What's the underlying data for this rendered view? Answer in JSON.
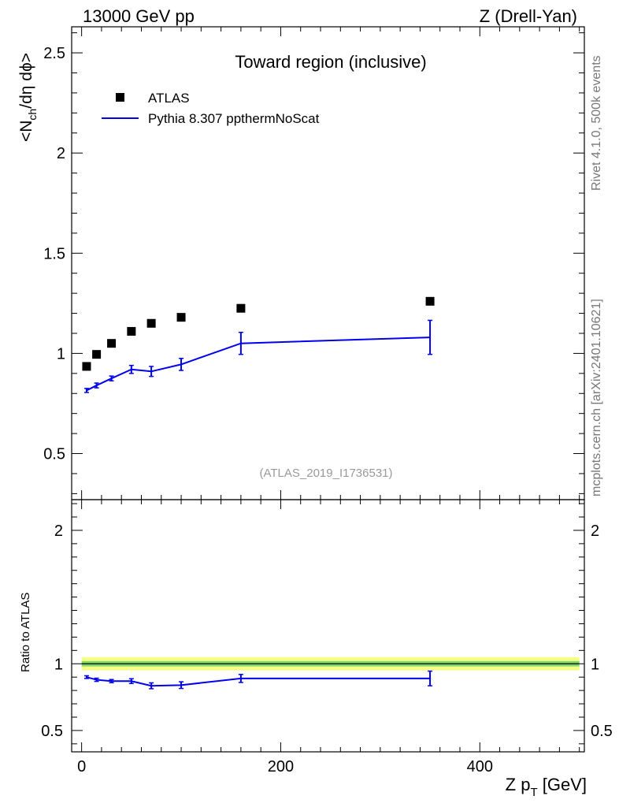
{
  "header": {
    "left": "13000 GeV pp",
    "right": "Z (Drell-Yan)"
  },
  "side_labels": {
    "rivet": "Rivet 4.1.0,  500k events",
    "mcplots": "mcplots.cern.ch [arXiv:2401.10621]"
  },
  "colors": {
    "data": "#000000",
    "mc": "#0000ee",
    "band_outer": "#f6ff83",
    "band_inner": "#7fd96a",
    "watermark": "#888888"
  },
  "chart_data": [
    {
      "type": "scatter",
      "title": "Toward region (inclusive)",
      "watermark": "(ATLAS_2019_I1736531)",
      "ylabel_main": "<N",
      "ylabel_sub": "ch",
      "ylabel_rest": "/dη dϕ>",
      "xlim": [
        -10,
        505
      ],
      "ylim": [
        0.27,
        2.63
      ],
      "yticks": [
        0.5,
        1,
        1.5,
        2,
        2.5
      ],
      "ytick_labels": [
        "0.5",
        "1",
        "1.5",
        "2",
        "2.5"
      ],
      "legend": [
        {
          "label": "ATLAS",
          "marker": "square"
        },
        {
          "label": "Pythia 8.307 ppthermNoScat",
          "marker": "line"
        }
      ],
      "series": [
        {
          "name": "ATLAS",
          "x": [
            5,
            15,
            30,
            50,
            70,
            100,
            160,
            350
          ],
          "y": [
            0.935,
            0.995,
            1.05,
            1.11,
            1.15,
            1.18,
            1.225,
            1.26
          ]
        },
        {
          "name": "Pythia 8.307 ppthermNoScat",
          "x": [
            5,
            15,
            30,
            50,
            70,
            100,
            160,
            350
          ],
          "y": [
            0.815,
            0.84,
            0.875,
            0.92,
            0.91,
            0.945,
            1.05,
            1.08
          ],
          "yerr": [
            0.01,
            0.012,
            0.012,
            0.02,
            0.025,
            0.03,
            0.055,
            0.085
          ]
        }
      ]
    },
    {
      "type": "line",
      "ylabel": "Ratio to ATLAS",
      "xlabel_main": "Z p",
      "xlabel_sub": "T",
      "xlabel_rest": " [GeV]",
      "xlim": [
        -10,
        505
      ],
      "ylim": [
        0.34,
        2.23
      ],
      "xticks": [
        0,
        200,
        400
      ],
      "xtick_labels": [
        "0",
        "200",
        "400"
      ],
      "yticks": [
        0.5,
        1,
        2
      ],
      "ytick_labels": [
        "0.5",
        "1",
        "2"
      ],
      "band": {
        "x_range": [
          0,
          500
        ],
        "outer": [
          0.95,
          1.05
        ],
        "inner": [
          0.98,
          1.02
        ]
      },
      "series": [
        {
          "name": "Pythia 8.307 ppthermNoScat / ATLAS",
          "x": [
            5,
            15,
            30,
            50,
            70,
            100,
            160,
            350
          ],
          "y": [
            0.9,
            0.88,
            0.87,
            0.87,
            0.835,
            0.84,
            0.89,
            0.89
          ],
          "yerr": [
            0.01,
            0.012,
            0.012,
            0.018,
            0.022,
            0.025,
            0.03,
            0.055
          ]
        }
      ]
    }
  ]
}
